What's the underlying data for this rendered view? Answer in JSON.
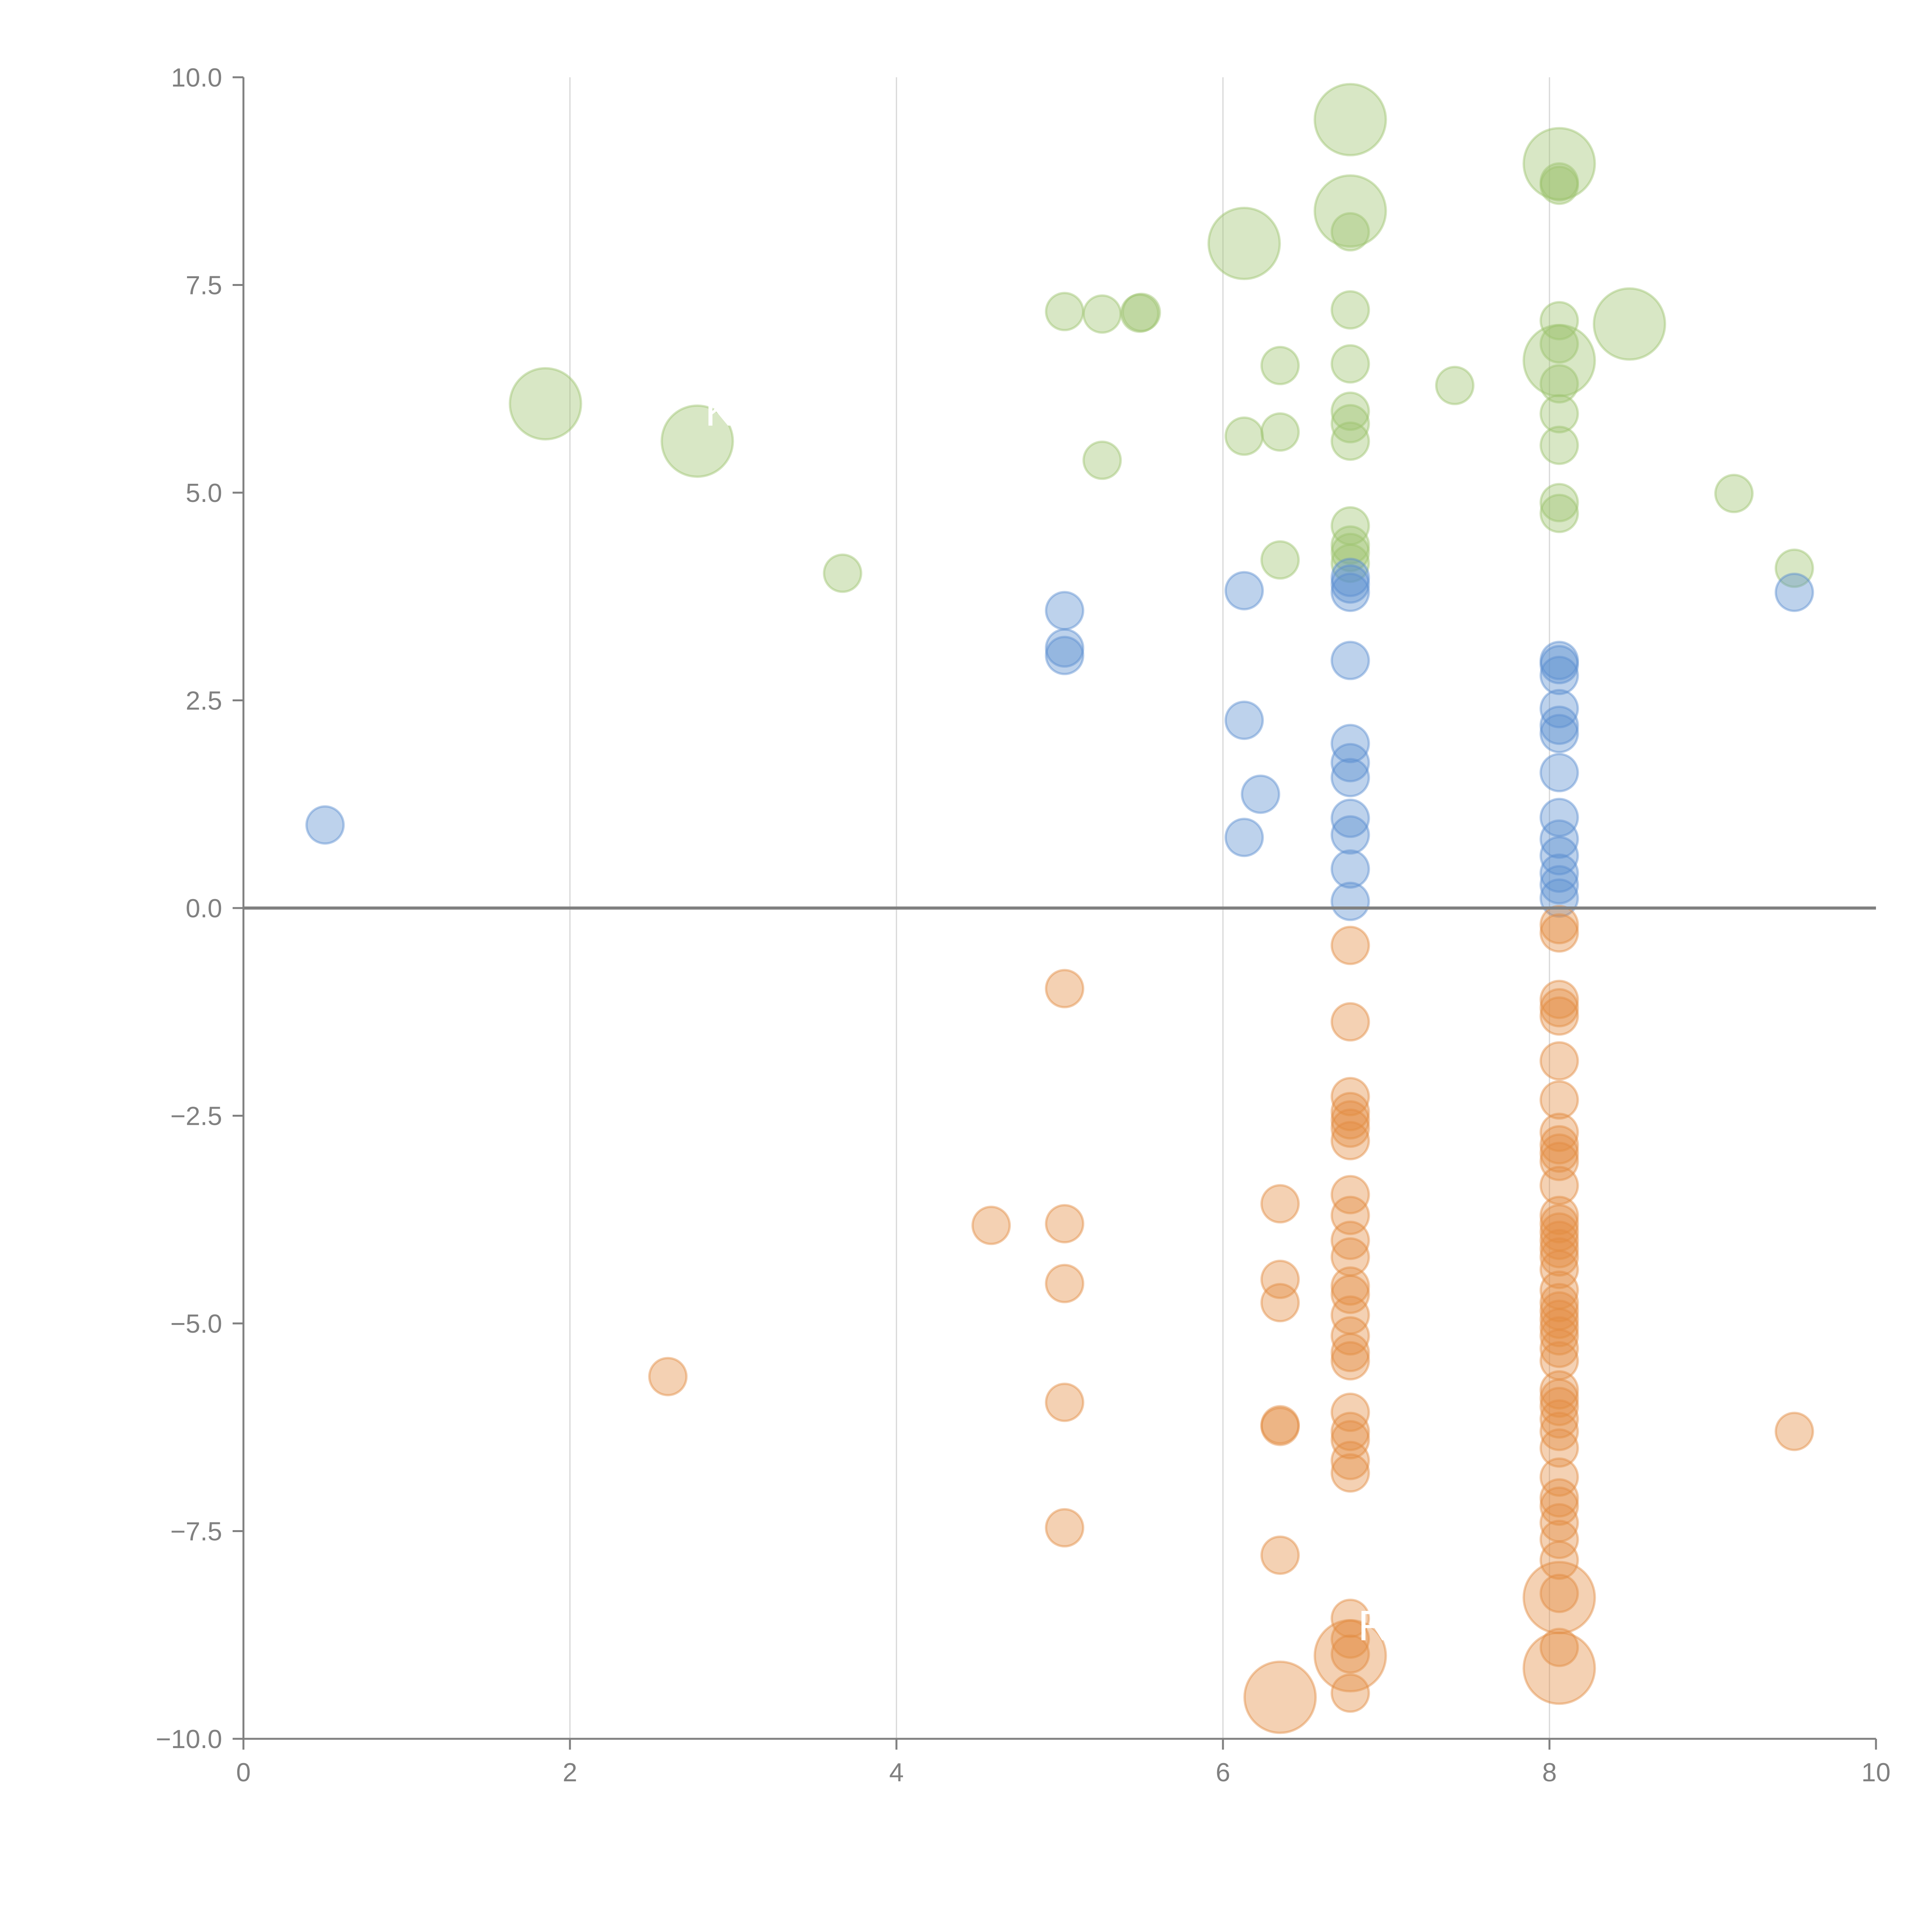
{
  "chart_data": {
    "type": "scatter",
    "title": "",
    "xlabel": "",
    "ylabel": "",
    "xlim": [
      0,
      10
    ],
    "ylim": [
      -10,
      10
    ],
    "x_ticks": [
      "0",
      "2",
      "4",
      "6",
      "8",
      "10"
    ],
    "y_ticks": [
      "10.0",
      "7.5",
      "5.0",
      "2.5",
      "0.0",
      "−2.5",
      "−5.0",
      "−7.5",
      "−10.0"
    ],
    "x_tick_values": [
      0,
      2,
      4,
      6,
      8,
      10
    ],
    "y_tick_values": [
      10,
      7.5,
      5,
      2.5,
      0,
      -2.5,
      -5,
      -7.5,
      -10
    ],
    "grid": "vertical-only",
    "zero_line": true,
    "legend": "none",
    "bubble_size_note": "size: 1 = small, 2 = large",
    "series": [
      {
        "name": "green",
        "color": "#9dc46e",
        "points": [
          [
            1.85,
            6.07,
            2
          ],
          [
            2.78,
            5.62,
            2
          ],
          [
            3.67,
            4.03,
            1
          ],
          [
            5.03,
            7.18,
            1
          ],
          [
            5.26,
            7.15,
            1
          ],
          [
            5.49,
            7.16,
            1
          ],
          [
            5.5,
            7.17,
            1
          ],
          [
            5.26,
            5.39,
            1
          ],
          [
            6.13,
            8.0,
            2
          ],
          [
            6.13,
            5.68,
            1
          ],
          [
            6.35,
            6.53,
            1
          ],
          [
            6.35,
            5.73,
            1
          ],
          [
            6.35,
            4.19,
            1
          ],
          [
            6.78,
            9.49,
            2
          ],
          [
            6.78,
            8.39,
            2
          ],
          [
            6.78,
            8.14,
            1
          ],
          [
            6.78,
            7.2,
            1
          ],
          [
            6.78,
            6.55,
            1
          ],
          [
            6.78,
            5.98,
            1
          ],
          [
            6.78,
            5.83,
            1
          ],
          [
            6.78,
            5.62,
            1
          ],
          [
            6.78,
            4.6,
            1
          ],
          [
            6.78,
            4.37,
            1
          ],
          [
            6.78,
            4.28,
            1
          ],
          [
            6.78,
            4.15,
            1
          ],
          [
            7.42,
            6.29,
            1
          ],
          [
            8.06,
            8.96,
            2
          ],
          [
            8.06,
            8.74,
            1
          ],
          [
            8.06,
            8.7,
            1
          ],
          [
            8.06,
            7.07,
            1
          ],
          [
            8.06,
            6.79,
            1
          ],
          [
            8.06,
            6.59,
            2
          ],
          [
            8.06,
            6.31,
            1
          ],
          [
            8.06,
            5.95,
            1
          ],
          [
            8.06,
            5.57,
            1
          ],
          [
            8.06,
            4.88,
            1
          ],
          [
            8.06,
            4.75,
            1
          ],
          [
            8.49,
            7.03,
            2
          ],
          [
            9.13,
            4.99,
            1
          ],
          [
            9.5,
            4.09,
            1
          ]
        ]
      },
      {
        "name": "blue",
        "color": "#5b8fd0",
        "points": [
          [
            0.5,
            1.0,
            1
          ],
          [
            5.03,
            3.58,
            1
          ],
          [
            5.03,
            3.13,
            1
          ],
          [
            5.03,
            3.04,
            1
          ],
          [
            6.13,
            3.82,
            1
          ],
          [
            6.13,
            2.26,
            1
          ],
          [
            6.23,
            1.37,
            1
          ],
          [
            6.13,
            0.85,
            1
          ],
          [
            6.78,
            3.98,
            1
          ],
          [
            6.78,
            3.9,
            1
          ],
          [
            6.78,
            3.8,
            1
          ],
          [
            6.78,
            2.98,
            1
          ],
          [
            6.78,
            1.98,
            1
          ],
          [
            6.78,
            1.75,
            1
          ],
          [
            6.78,
            1.57,
            1
          ],
          [
            6.78,
            1.08,
            1
          ],
          [
            6.78,
            0.88,
            1
          ],
          [
            6.78,
            0.47,
            1
          ],
          [
            6.78,
            0.08,
            1
          ],
          [
            8.06,
            2.98,
            1
          ],
          [
            8.06,
            2.93,
            1
          ],
          [
            8.06,
            2.8,
            1
          ],
          [
            8.06,
            2.4,
            1
          ],
          [
            8.06,
            2.2,
            1
          ],
          [
            8.06,
            2.1,
            1
          ],
          [
            8.06,
            1.63,
            1
          ],
          [
            8.06,
            1.09,
            1
          ],
          [
            8.06,
            0.83,
            1
          ],
          [
            8.06,
            0.63,
            1
          ],
          [
            8.06,
            0.42,
            1
          ],
          [
            8.06,
            0.28,
            1
          ],
          [
            8.06,
            0.12,
            1
          ],
          [
            9.5,
            3.8,
            1
          ]
        ]
      },
      {
        "name": "orange",
        "color": "#e38c42",
        "points": [
          [
            2.6,
            -5.64,
            1
          ],
          [
            4.58,
            -3.82,
            1
          ],
          [
            5.03,
            -0.97,
            1
          ],
          [
            5.03,
            -3.8,
            1
          ],
          [
            5.03,
            -4.52,
            1
          ],
          [
            5.03,
            -5.95,
            1
          ],
          [
            5.03,
            -7.46,
            1
          ],
          [
            6.35,
            -3.56,
            1
          ],
          [
            6.35,
            -4.47,
            1
          ],
          [
            6.35,
            -4.75,
            1
          ],
          [
            6.35,
            -6.22,
            1
          ],
          [
            6.35,
            -6.24,
            1
          ],
          [
            6.35,
            -7.79,
            1
          ],
          [
            6.35,
            -9.5,
            2
          ],
          [
            6.78,
            -0.45,
            1
          ],
          [
            6.78,
            -1.37,
            1
          ],
          [
            6.78,
            -2.27,
            1
          ],
          [
            6.78,
            -2.45,
            1
          ],
          [
            6.78,
            -2.55,
            1
          ],
          [
            6.78,
            -2.65,
            1
          ],
          [
            6.78,
            -2.8,
            1
          ],
          [
            6.78,
            -3.45,
            1
          ],
          [
            6.78,
            -3.7,
            1
          ],
          [
            6.78,
            -4.0,
            1
          ],
          [
            6.78,
            -4.2,
            1
          ],
          [
            6.78,
            -4.55,
            1
          ],
          [
            6.78,
            -4.65,
            1
          ],
          [
            6.78,
            -4.9,
            1
          ],
          [
            6.78,
            -5.15,
            1
          ],
          [
            6.78,
            -5.35,
            1
          ],
          [
            6.78,
            -5.45,
            1
          ],
          [
            6.78,
            -6.07,
            1
          ],
          [
            6.78,
            -6.3,
            1
          ],
          [
            6.78,
            -6.4,
            1
          ],
          [
            6.78,
            -6.65,
            1
          ],
          [
            6.78,
            -6.8,
            1
          ],
          [
            6.78,
            -8.55,
            1
          ],
          [
            6.78,
            -8.8,
            1
          ],
          [
            6.78,
            -9.0,
            2
          ],
          [
            6.78,
            -8.98,
            1
          ],
          [
            6.78,
            -9.45,
            1
          ],
          [
            8.06,
            -0.2,
            1
          ],
          [
            8.06,
            -0.3,
            1
          ],
          [
            8.06,
            -1.1,
            1
          ],
          [
            8.06,
            -1.2,
            1
          ],
          [
            8.06,
            -1.3,
            1
          ],
          [
            8.06,
            -1.84,
            1
          ],
          [
            8.06,
            -2.31,
            1
          ],
          [
            8.06,
            -2.7,
            1
          ],
          [
            8.06,
            -2.85,
            1
          ],
          [
            8.06,
            -2.95,
            1
          ],
          [
            8.06,
            -3.05,
            1
          ],
          [
            8.06,
            -3.34,
            1
          ],
          [
            8.06,
            -3.7,
            1
          ],
          [
            8.06,
            -3.8,
            1
          ],
          [
            8.06,
            -3.9,
            1
          ],
          [
            8.06,
            -4.0,
            1
          ],
          [
            8.06,
            -4.1,
            1
          ],
          [
            8.06,
            -4.2,
            1
          ],
          [
            8.06,
            -4.35,
            1
          ],
          [
            8.06,
            -4.6,
            1
          ],
          [
            8.06,
            -4.75,
            1
          ],
          [
            8.06,
            -4.85,
            1
          ],
          [
            8.06,
            -4.95,
            1
          ],
          [
            8.06,
            -5.05,
            1
          ],
          [
            8.06,
            -5.15,
            1
          ],
          [
            8.06,
            -5.3,
            1
          ],
          [
            8.06,
            -5.45,
            1
          ],
          [
            8.06,
            -5.8,
            1
          ],
          [
            8.06,
            -5.9,
            1
          ],
          [
            8.06,
            -6.0,
            1
          ],
          [
            8.06,
            -6.15,
            1
          ],
          [
            8.06,
            -6.3,
            1
          ],
          [
            8.06,
            -6.5,
            1
          ],
          [
            8.06,
            -6.85,
            1
          ],
          [
            8.06,
            -7.1,
            1
          ],
          [
            8.06,
            -7.2,
            1
          ],
          [
            8.06,
            -7.4,
            1
          ],
          [
            8.06,
            -7.6,
            1
          ],
          [
            8.06,
            -7.85,
            1
          ],
          [
            8.06,
            -8.3,
            2
          ],
          [
            8.06,
            -8.25,
            1
          ],
          [
            8.06,
            -8.9,
            1
          ],
          [
            8.06,
            -9.15,
            2
          ],
          [
            9.5,
            -6.3,
            1
          ]
        ]
      }
    ],
    "annotations": [
      {
        "text": "KIVO",
        "x": 2.78,
        "y": 5.62,
        "color": "#ffffff"
      },
      {
        "text": "R",
        "x": 6.78,
        "y": -9.0,
        "color": "#ffffff"
      }
    ]
  }
}
